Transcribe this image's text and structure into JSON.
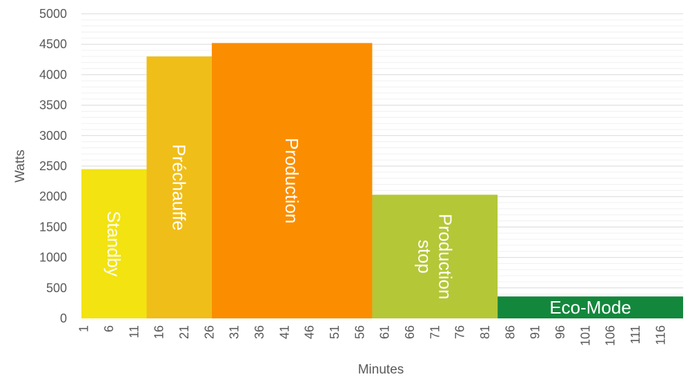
{
  "chart_data": {
    "type": "bar",
    "xlabel": "Minutes",
    "ylabel": "Watts",
    "ylim": [
      0,
      5000
    ],
    "y_ticks": [
      0,
      500,
      1000,
      1500,
      2000,
      2500,
      3000,
      3500,
      4000,
      4500,
      5000
    ],
    "x_range": [
      1,
      120
    ],
    "x_tick_labels": [
      "1",
      "6",
      "11",
      "16",
      "21",
      "26",
      "31",
      "36",
      "41",
      "46",
      "51",
      "56",
      "61",
      "66",
      "71",
      "76",
      "81",
      "86",
      "91",
      "96",
      "101",
      "106",
      "111",
      "116"
    ],
    "grid": "horizontal major and minor",
    "segments": [
      {
        "label_lines": [
          "Standby"
        ],
        "start_minute": 1,
        "end_minute": 13,
        "watts": 2450,
        "color": "#F2E311",
        "label_orientation": "vertical-down"
      },
      {
        "label_lines": [
          "Préchauffe"
        ],
        "start_minute": 14,
        "end_minute": 26,
        "watts": 4300,
        "color": "#F0BE19",
        "label_orientation": "vertical-down"
      },
      {
        "label_lines": [
          "Production"
        ],
        "start_minute": 27,
        "end_minute": 58,
        "watts": 4520,
        "color": "#FA8E00",
        "label_orientation": "vertical-down"
      },
      {
        "label_lines": [
          "Production",
          "stop"
        ],
        "start_minute": 59,
        "end_minute": 83,
        "watts": 2030,
        "color": "#B4C737",
        "label_orientation": "vertical-down"
      },
      {
        "label_lines": [
          "Eco-Mode"
        ],
        "start_minute": 84,
        "end_minute": 120,
        "watts": 360,
        "color": "#13883C",
        "label_orientation": "horizontal"
      }
    ]
  }
}
